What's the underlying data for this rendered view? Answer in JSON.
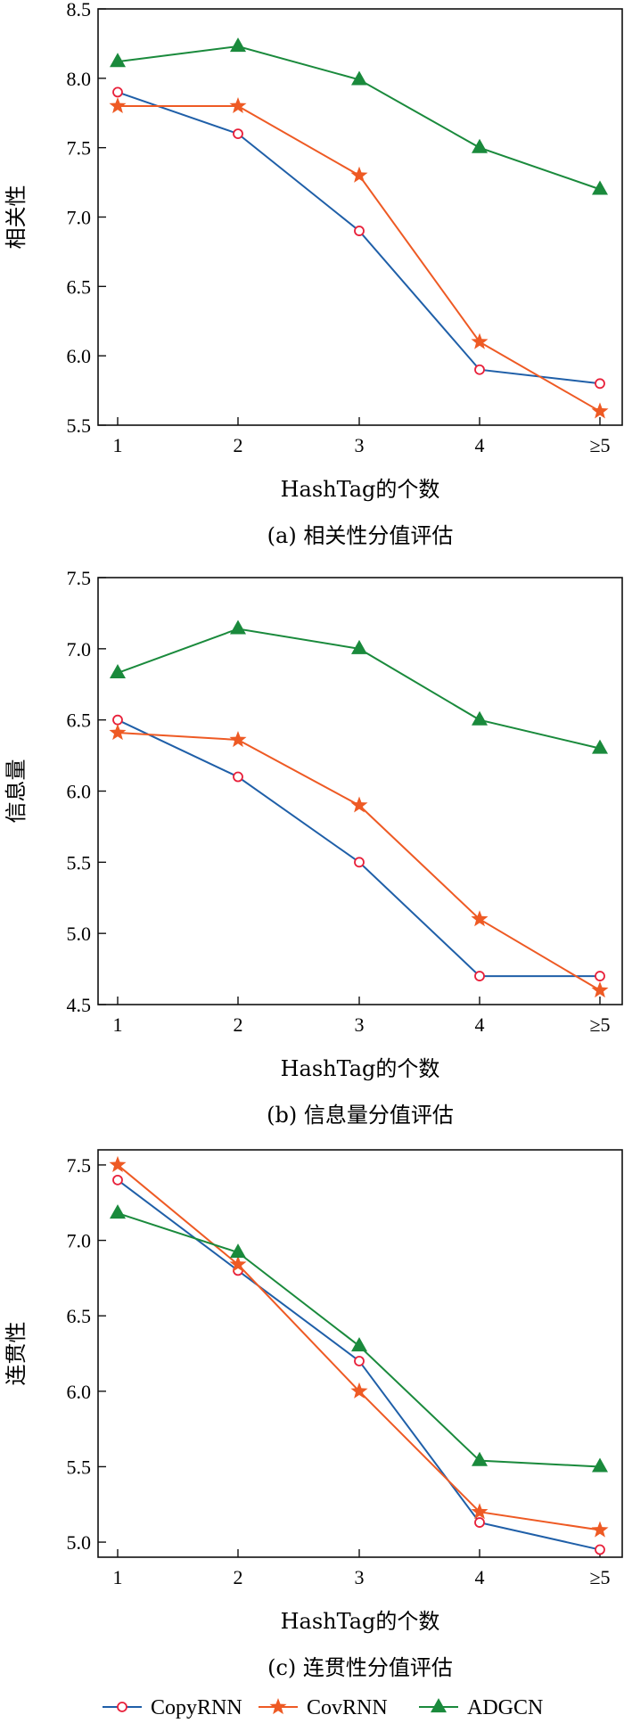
{
  "colors": {
    "CopyRNN": "#1f5fa8",
    "CovRNN": "#ee5a24",
    "ADGCN": "#1a8a3c",
    "axis": "#111111"
  },
  "legend": [
    "CopyRNN",
    "CovRNN",
    "ADGCN"
  ],
  "chart_data": [
    {
      "type": "line",
      "caption": "(a) 相关性分值评估",
      "xlabel": "HashTag的个数",
      "ylabel": "相关性",
      "categories": [
        "1",
        "2",
        "3",
        "4",
        "≥5"
      ],
      "ylim": [
        5.5,
        8.5
      ],
      "yticks": [
        "5.5",
        "6.0",
        "6.5",
        "7.0",
        "7.5",
        "8.0",
        "8.5"
      ],
      "series": [
        {
          "name": "CopyRNN",
          "marker": "circle",
          "values": [
            7.9,
            7.6,
            6.9,
            5.9,
            5.8
          ]
        },
        {
          "name": "CovRNN",
          "marker": "star",
          "values": [
            7.8,
            7.8,
            7.3,
            6.1,
            5.6
          ]
        },
        {
          "name": "ADGCN",
          "marker": "triangle",
          "values": [
            8.12,
            8.23,
            7.99,
            7.5,
            7.2
          ]
        }
      ]
    },
    {
      "type": "line",
      "caption": "(b) 信息量分值评估",
      "xlabel": "HashTag的个数",
      "ylabel": "信息量",
      "categories": [
        "1",
        "2",
        "3",
        "4",
        "≥5"
      ],
      "ylim": [
        4.5,
        7.5
      ],
      "yticks": [
        "4.5",
        "5.0",
        "5.5",
        "6.0",
        "6.5",
        "7.0",
        "7.5"
      ],
      "series": [
        {
          "name": "CopyRNN",
          "marker": "circle",
          "values": [
            6.5,
            6.1,
            5.5,
            4.7,
            4.7
          ]
        },
        {
          "name": "CovRNN",
          "marker": "star",
          "values": [
            6.41,
            6.36,
            5.9,
            5.1,
            4.6
          ]
        },
        {
          "name": "ADGCN",
          "marker": "triangle",
          "values": [
            6.83,
            7.14,
            7.0,
            6.5,
            6.3
          ]
        }
      ]
    },
    {
      "type": "line",
      "caption": "(c) 连贯性分值评估",
      "xlabel": "HashTag的个数",
      "ylabel": "连贯性",
      "categories": [
        "1",
        "2",
        "3",
        "4",
        "≥5"
      ],
      "ylim": [
        4.9,
        7.6
      ],
      "yticks": [
        "5.0",
        "5.5",
        "6.0",
        "6.5",
        "7.0",
        "7.5"
      ],
      "series": [
        {
          "name": "CopyRNN",
          "marker": "circle",
          "values": [
            7.4,
            6.8,
            6.2,
            5.13,
            4.95
          ]
        },
        {
          "name": "CovRNN",
          "marker": "star",
          "values": [
            7.5,
            6.84,
            6.0,
            5.2,
            5.08
          ]
        },
        {
          "name": "ADGCN",
          "marker": "triangle",
          "values": [
            7.18,
            6.92,
            6.3,
            5.54,
            5.5
          ]
        }
      ]
    }
  ]
}
